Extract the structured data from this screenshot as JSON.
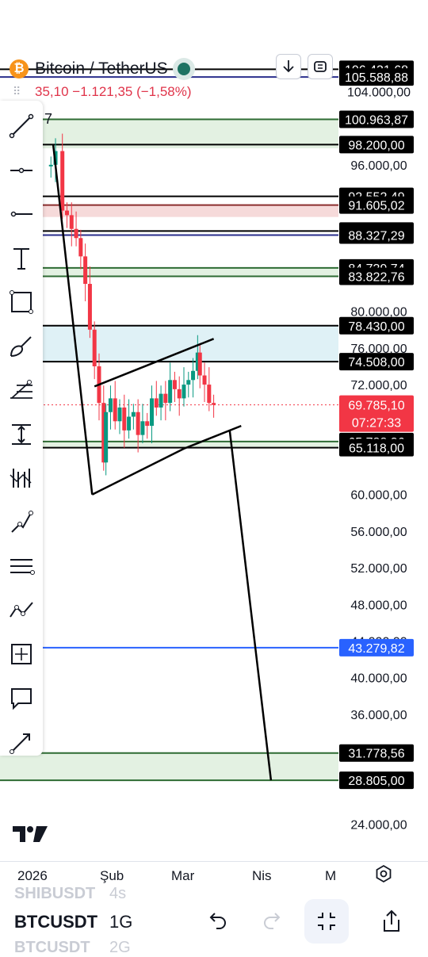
{
  "header": {
    "symbol_title": "Bitcoin / TetherUS",
    "logo_glyph": "₿",
    "change_text": "35,10  −1.121,35 (−1,58%)",
    "tool_number": "7"
  },
  "chart_data": {
    "type": "candlestick",
    "title": "",
    "y_ticks": [
      "104.000,00",
      "96.000,00",
      "80.000,00",
      "76.000,00",
      "72.000,00",
      "60.000,00",
      "56.000,00",
      "52.000,00",
      "48.000,00",
      "44.000,00",
      "40.000,00",
      "36.000,00",
      "24.000,00"
    ],
    "y_tick_values": [
      104000,
      96000,
      80000,
      76000,
      72000,
      60000,
      56000,
      52000,
      48000,
      44000,
      40000,
      36000,
      24000
    ],
    "x_ticks": [
      "2026",
      "Şub",
      "Mar",
      "Nis",
      "M"
    ],
    "x_tick_days": [
      0,
      31,
      59,
      90,
      120
    ],
    "ylim": [
      20500,
      107500
    ],
    "xlim_days": [
      0,
      130
    ],
    "current_price": {
      "label": "69.785,10",
      "countdown": "07:27:33",
      "value": 69785.1,
      "color": "#f23645"
    },
    "price_lines": [
      {
        "label": "106.431,68",
        "value": 106431.68,
        "color": "#000000"
      },
      {
        "label": "105.588,88",
        "value": 105588.88,
        "color": "#2a2e8c"
      },
      {
        "label": "100.963,87",
        "value": 100963.87,
        "color": "#2e6b33"
      },
      {
        "label": "98.200,00",
        "value": 98200.0,
        "color": "#000000"
      },
      {
        "label": "92.552,49",
        "value": 92552.49,
        "color": "#000000"
      },
      {
        "label": "91.605,02",
        "value": 91605.02,
        "color": "#8b2d2d"
      },
      {
        "label": "88.765,43",
        "value": 88765.43,
        "color": "#000000"
      },
      {
        "label": "88.327,29",
        "value": 88327.29,
        "color": "#2a2e8c"
      },
      {
        "label": "84.739,74",
        "value": 84739.74,
        "color": "#2e6b33"
      },
      {
        "label": "83.822,76",
        "value": 83822.76,
        "color": "#2e6b33"
      },
      {
        "label": "78.430,00",
        "value": 78430.0,
        "color": "#000000"
      },
      {
        "label": "74.508,00",
        "value": 74508.0,
        "color": "#000000"
      },
      {
        "label": "65.788,36",
        "value": 65788.36,
        "color": "#2e6b33"
      },
      {
        "label": "65.118,00",
        "value": 65118.0,
        "color": "#000000"
      },
      {
        "label": "43.279,82",
        "value": 43279.82,
        "color": "#2962ff"
      },
      {
        "label": "31.778,56",
        "value": 31778.56,
        "color": "#2e6b33"
      },
      {
        "label": "28.805,00",
        "value": 28805.0,
        "color": "#2e6b33"
      }
    ],
    "zones": [
      {
        "from": 100963.87,
        "to": 97800,
        "color": "#e3f1e2"
      },
      {
        "from": 91605.02,
        "to": 90300,
        "color": "#f6dada"
      },
      {
        "from": 84739.74,
        "to": 83822.76,
        "color": "#e3f1e2"
      },
      {
        "from": 78430.0,
        "to": 74508.0,
        "color": "#dff1f6"
      },
      {
        "from": 65788.36,
        "to": 65118.0,
        "color": "#e3f1e2"
      },
      {
        "from": 31778.56,
        "to": 28805.0,
        "color": "#e3f1e2"
      }
    ],
    "trend_lines": [
      {
        "points": [
          [
            8,
            98200
          ],
          [
            25,
            60000
          ]
        ]
      },
      {
        "points": [
          [
            25,
            60000
          ],
          [
            65,
            65000
          ],
          [
            90,
            67500
          ]
        ]
      },
      {
        "points": [
          [
            26,
            71800
          ],
          [
            78,
            77000
          ]
        ]
      },
      {
        "points": [
          [
            85,
            67000
          ],
          [
            103,
            28805
          ]
        ]
      }
    ],
    "colors": {
      "up": "#089981",
      "down": "#f23645"
    }
  },
  "toolbar": {
    "tools": [
      "trend-line",
      "horizontal-ray",
      "horizontal-line",
      "text",
      "rectangle",
      "brush",
      "fib-retracement",
      "measure",
      "long-short",
      "path",
      "parallel-channel",
      "chart-pattern",
      "projection",
      "callout",
      "arrow"
    ]
  },
  "time_axis": {
    "labels": [
      "2026",
      "Şub",
      "Mar",
      "Nis",
      "M"
    ]
  },
  "bottom": {
    "symbol_prev": "SHIBUSDT",
    "symbol_current": "BTCUSDT",
    "symbol_next": "BTCUSDT",
    "interval_prev": "4s",
    "interval_current": "1G",
    "interval_next": "2G"
  }
}
